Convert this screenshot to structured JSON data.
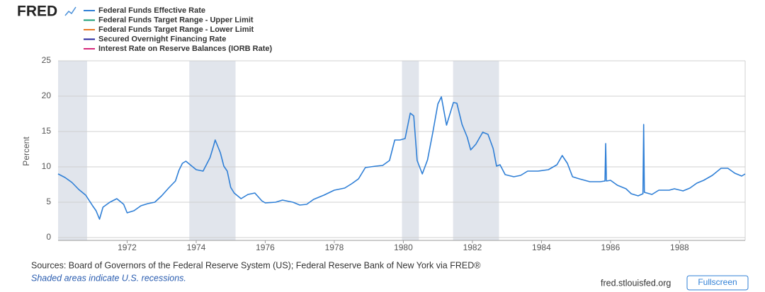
{
  "logo": "FRED",
  "chart_data": {
    "type": "line",
    "y_label": "Percent",
    "x": [
      1970.0,
      1970.2,
      1970.4,
      1970.6,
      1970.8,
      1971.0,
      1971.1,
      1971.2,
      1971.3,
      1971.5,
      1971.7,
      1971.9,
      1972.0,
      1972.2,
      1972.4,
      1972.6,
      1972.8,
      1973.0,
      1973.2,
      1973.4,
      1973.5,
      1973.6,
      1973.7,
      1973.9,
      1974.0,
      1974.2,
      1974.4,
      1974.5,
      1974.55,
      1974.7,
      1974.8,
      1974.9,
      1975.0,
      1975.1,
      1975.3,
      1975.5,
      1975.7,
      1975.9,
      1976.0,
      1976.3,
      1976.5,
      1976.8,
      1977.0,
      1977.2,
      1977.4,
      1977.7,
      1978.0,
      1978.3,
      1978.5,
      1978.7,
      1978.9,
      1979.2,
      1979.4,
      1979.6,
      1979.75,
      1979.9,
      1980.05,
      1980.2,
      1980.3,
      1980.4,
      1980.55,
      1980.7,
      1980.85,
      1981.0,
      1981.1,
      1981.25,
      1981.45,
      1981.55,
      1981.7,
      1981.85,
      1981.95,
      1982.1,
      1982.3,
      1982.45,
      1982.6,
      1982.7,
      1982.8,
      1982.95,
      1983.2,
      1983.4,
      1983.6,
      1983.9,
      1984.2,
      1984.45,
      1984.6,
      1984.75,
      1984.9,
      1985.1,
      1985.4,
      1985.7,
      1985.84,
      1985.86,
      1985.88,
      1986.0,
      1986.2,
      1986.45,
      1986.6,
      1986.8,
      1986.94,
      1986.96,
      1986.98,
      1987.2,
      1987.4,
      1987.7,
      1987.85,
      1988.1,
      1988.3,
      1988.5,
      1988.7,
      1988.95,
      1989.2,
      1989.4,
      1989.6,
      1989.8,
      1989.9
    ],
    "series": [
      {
        "name": "Federal Funds Effective Rate",
        "color": "#2f7fd6",
        "values": [
          9.0,
          8.5,
          7.8,
          6.8,
          6.0,
          4.5,
          3.8,
          2.6,
          4.3,
          5.0,
          5.5,
          4.7,
          3.5,
          3.8,
          4.5,
          4.8,
          5.0,
          5.9,
          7.0,
          8.0,
          9.5,
          10.5,
          10.8,
          10.0,
          9.6,
          9.4,
          11.3,
          12.9,
          13.8,
          12.0,
          10.1,
          9.4,
          7.1,
          6.3,
          5.5,
          6.1,
          6.3,
          5.2,
          4.9,
          5.0,
          5.3,
          5.0,
          4.6,
          4.7,
          5.4,
          6.0,
          6.7,
          7.0,
          7.6,
          8.3,
          9.9,
          10.1,
          10.2,
          10.9,
          13.8,
          13.8,
          14.0,
          17.6,
          17.2,
          10.9,
          9.0,
          11.0,
          14.8,
          18.9,
          19.9,
          15.9,
          19.1,
          19.0,
          16.0,
          14.2,
          12.4,
          13.2,
          14.9,
          14.6,
          12.6,
          10.1,
          10.3,
          8.9,
          8.6,
          8.8,
          9.4,
          9.4,
          9.6,
          10.3,
          11.6,
          10.5,
          8.6,
          8.3,
          7.9,
          7.9,
          8.0,
          13.3,
          8.0,
          8.1,
          7.4,
          6.9,
          6.2,
          5.9,
          6.2,
          16.0,
          6.4,
          6.1,
          6.7,
          6.7,
          6.9,
          6.6,
          7.0,
          7.7,
          8.1,
          8.8,
          9.8,
          9.8,
          9.1,
          8.7,
          9.0
        ]
      },
      {
        "name": "Federal Funds Target Range - Upper Limit",
        "color": "#1a9e77"
      },
      {
        "name": "Federal Funds Target Range - Lower Limit",
        "color": "#e87722"
      },
      {
        "name": "Secured Overnight Financing Rate",
        "color": "#23239c"
      },
      {
        "name": "Interest Rate on Reserve Balances (IORB Rate)",
        "color": "#d6287b"
      }
    ],
    "recessions": [
      [
        1970.0,
        1970.84
      ],
      [
        1973.8,
        1975.14
      ],
      [
        1979.96,
        1980.45
      ],
      [
        1981.44,
        1982.77
      ]
    ],
    "xlim": [
      1970.0,
      1989.9
    ],
    "xticks": [
      1972,
      1974,
      1976,
      1978,
      1980,
      1982,
      1984,
      1986,
      1988
    ],
    "ylim": [
      0,
      25
    ],
    "yticks": [
      0,
      5,
      10,
      15,
      20,
      25
    ],
    "grid": true
  },
  "sources": "Sources: Board of Governors of the Federal Reserve System (US); Federal Reserve Bank of New York via FRED®",
  "note": "Shaded areas indicate U.S. recessions.",
  "site": "fred.stlouisfed.org",
  "button": "Fullscreen"
}
